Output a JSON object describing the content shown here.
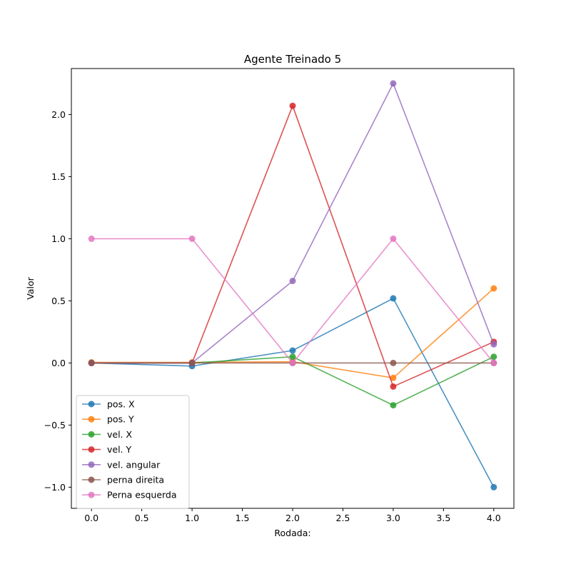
{
  "chart_data": {
    "type": "line",
    "title": "Agente Treinado 5",
    "xlabel": "Rodada:",
    "ylabel": "Valor",
    "xlim": [
      -0.2,
      4.2
    ],
    "ylim": [
      -1.17,
      2.37
    ],
    "xticks": [
      0.0,
      0.5,
      1.0,
      1.5,
      2.0,
      2.5,
      3.0,
      3.5,
      4.0
    ],
    "xtick_labels": [
      "0.0",
      "0.5",
      "1.0",
      "1.5",
      "2.0",
      "2.5",
      "3.0",
      "3.5",
      "4.0"
    ],
    "yticks": [
      -1.0,
      -0.5,
      0.0,
      0.5,
      1.0,
      1.5,
      2.0
    ],
    "ytick_labels": [
      "−1.0",
      "−0.5",
      "0.0",
      "0.5",
      "1.0",
      "1.5",
      "2.0"
    ],
    "grid": false,
    "legend_position": "lower-left",
    "x": [
      0,
      1,
      2,
      3,
      4
    ],
    "series": [
      {
        "name": "pos. X",
        "color": "#1f77b4",
        "values": [
          0.0,
          -0.025,
          0.1,
          0.52,
          -1.0
        ]
      },
      {
        "name": "pos. Y",
        "color": "#ff7f0e",
        "values": [
          0.005,
          0.005,
          0.01,
          -0.12,
          0.6
        ]
      },
      {
        "name": "vel. X",
        "color": "#2ca02c",
        "values": [
          0.0,
          0.0,
          0.05,
          -0.34,
          0.05
        ]
      },
      {
        "name": "vel. Y",
        "color": "#d62728",
        "values": [
          0.0,
          0.0,
          2.07,
          -0.19,
          0.17
        ]
      },
      {
        "name": "vel. angular",
        "color": "#9467bd",
        "values": [
          0.0,
          0.0,
          0.66,
          2.25,
          0.15
        ]
      },
      {
        "name": "perna direita",
        "color": "#8c564b",
        "values": [
          0.0,
          0.0,
          0.0,
          0.0,
          0.0
        ]
      },
      {
        "name": "Perna esquerda",
        "color": "#e377c2",
        "values": [
          1.0,
          1.0,
          0.0,
          1.0,
          0.0
        ]
      }
    ]
  }
}
